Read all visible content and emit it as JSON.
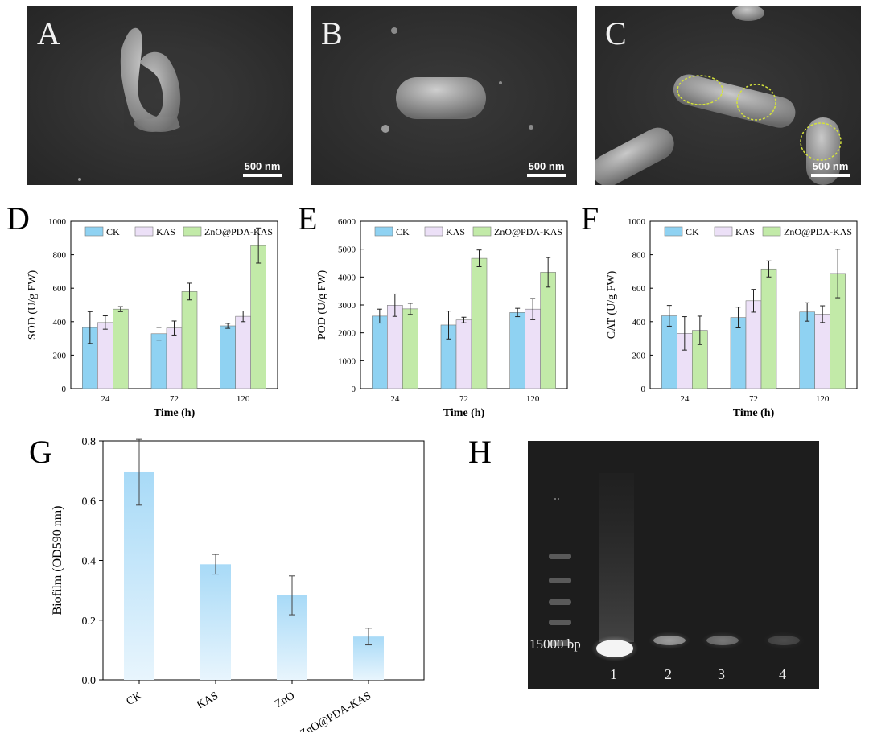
{
  "panels": {
    "A": {
      "label": "A",
      "scale": "500 nm"
    },
    "B": {
      "label": "B",
      "scale": "500 nm"
    },
    "C": {
      "label": "C",
      "scale": "500 nm"
    },
    "D": {
      "label": "D"
    },
    "E": {
      "label": "E"
    },
    "F": {
      "label": "F"
    },
    "G": {
      "label": "G"
    },
    "H": {
      "label": "H",
      "marker": "15000 bp",
      "lanes": [
        "1",
        "2",
        "3",
        "4"
      ],
      "band_intensity": [
        1.0,
        0.45,
        0.3,
        0.15
      ]
    }
  },
  "colors": {
    "CK": "#8fd2f2",
    "KAS": "#ece0f7",
    "ZnO@PDA-KAS": "#c2eaa8",
    "G_bar": "#a8daf7"
  },
  "chart_data": [
    {
      "id": "D",
      "type": "bar",
      "categories": [
        "24",
        "72",
        "120"
      ],
      "xlabel": "Time (h)",
      "ylabel": "SOD (U/g FW)",
      "ylim": [
        0,
        1000
      ],
      "yticks": [
        0,
        200,
        400,
        600,
        800,
        1000
      ],
      "legend": "top",
      "series": [
        {
          "name": "CK",
          "values": [
            365,
            328,
            375
          ],
          "errors": [
            95,
            38,
            15
          ]
        },
        {
          "name": "KAS",
          "values": [
            395,
            362,
            432
          ],
          "errors": [
            40,
            42,
            32
          ]
        },
        {
          "name": "ZnO@PDA-KAS",
          "values": [
            475,
            580,
            855
          ],
          "errors": [
            15,
            50,
            105
          ]
        }
      ]
    },
    {
      "id": "E",
      "type": "bar",
      "categories": [
        "24",
        "72",
        "120"
      ],
      "xlabel": "Time (h)",
      "ylabel": "POD (U/g FW)",
      "ylim": [
        0,
        6000
      ],
      "yticks": [
        0,
        1000,
        2000,
        3000,
        4000,
        5000,
        6000
      ],
      "legend": "top",
      "series": [
        {
          "name": "CK",
          "values": [
            2600,
            2280,
            2730
          ],
          "errors": [
            250,
            500,
            150
          ]
        },
        {
          "name": "KAS",
          "values": [
            2990,
            2460,
            2850
          ],
          "errors": [
            400,
            100,
            380
          ]
        },
        {
          "name": "ZnO@PDA-KAS",
          "values": [
            2860,
            4670,
            4170
          ],
          "errors": [
            200,
            300,
            530
          ]
        }
      ]
    },
    {
      "id": "F",
      "type": "bar",
      "categories": [
        "24",
        "72",
        "120"
      ],
      "xlabel": "Time (h)",
      "ylabel": "CAT (U/g FW)",
      "ylim": [
        0,
        1000
      ],
      "yticks": [
        0,
        200,
        400,
        600,
        800,
        1000
      ],
      "legend": "top",
      "series": [
        {
          "name": "CK",
          "values": [
            435,
            425,
            458
          ],
          "errors": [
            62,
            62,
            55
          ]
        },
        {
          "name": "KAS",
          "values": [
            330,
            525,
            445
          ],
          "errors": [
            100,
            68,
            50
          ]
        },
        {
          "name": "ZnO@PDA-KAS",
          "values": [
            348,
            715,
            688
          ],
          "errors": [
            85,
            48,
            145
          ]
        }
      ]
    },
    {
      "id": "G",
      "type": "bar",
      "categories": [
        "CK",
        "KAS",
        "ZnO",
        "ZnO@PDA-KAS"
      ],
      "xlabel": "",
      "ylabel": "Biofilm (OD590 nm)",
      "ylim": [
        0,
        0.8
      ],
      "yticks": [
        "0.0",
        "0.2",
        "0.4",
        "0.6",
        "0.8"
      ],
      "series": [
        {
          "values": [
            0.695,
            0.387,
            0.283,
            0.145
          ],
          "errors": [
            0.11,
            0.033,
            0.065,
            0.028
          ]
        }
      ]
    }
  ]
}
